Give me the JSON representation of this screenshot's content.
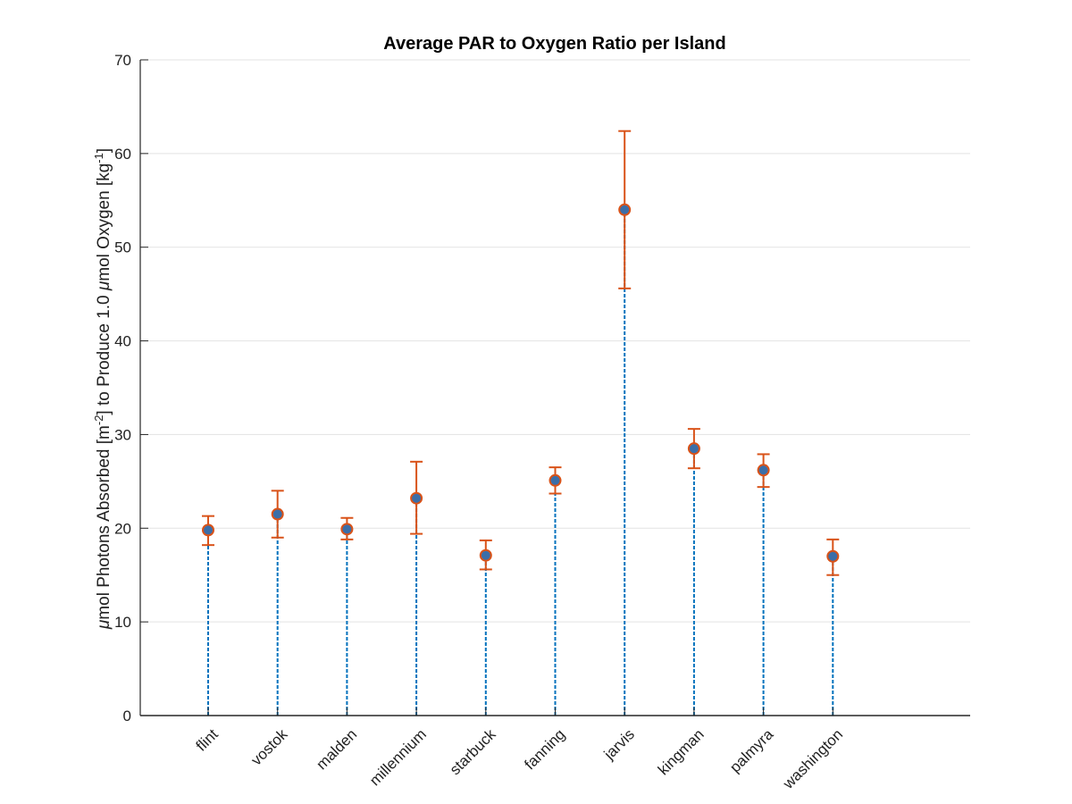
{
  "chart_data": {
    "type": "scatter",
    "title": "Average PAR to Oxygen Ratio per Island",
    "ylabel": {
      "mu1": "μ",
      "part1": "mol Photons Absorbed [m",
      "sup1": "-2",
      "part2": "] to Produce 1.0 ",
      "mu2": "μ",
      "part3": "mol Oxygen [kg",
      "sup2": "-1",
      "part4": "]"
    },
    "xlabel": "",
    "ylim": [
      0,
      70
    ],
    "yticks": [
      "0",
      "10",
      "20",
      "30",
      "40",
      "50",
      "60",
      "70"
    ],
    "grid": "horizontal",
    "categories": [
      "flint",
      "vostok",
      "malden",
      "millennium",
      "starbuck",
      "fanning",
      "jarvis",
      "kingman",
      "palmyra",
      "washington"
    ],
    "values": [
      19.8,
      21.5,
      19.9,
      23.2,
      17.1,
      25.1,
      54.0,
      28.5,
      26.2,
      17.0
    ],
    "error_low": [
      18.2,
      19.0,
      18.8,
      19.4,
      15.6,
      23.7,
      45.6,
      26.4,
      24.4,
      15.0
    ],
    "error_high": [
      21.3,
      24.0,
      21.1,
      27.1,
      18.7,
      26.5,
      62.4,
      30.6,
      27.9,
      18.8
    ],
    "colors": {
      "marker_fill": "#3b6ea8",
      "marker_edge": "#d95319",
      "errorbar": "#d95319",
      "stem": "#0072bd",
      "grid": "#e3e3e3",
      "axis": "#262626"
    }
  }
}
